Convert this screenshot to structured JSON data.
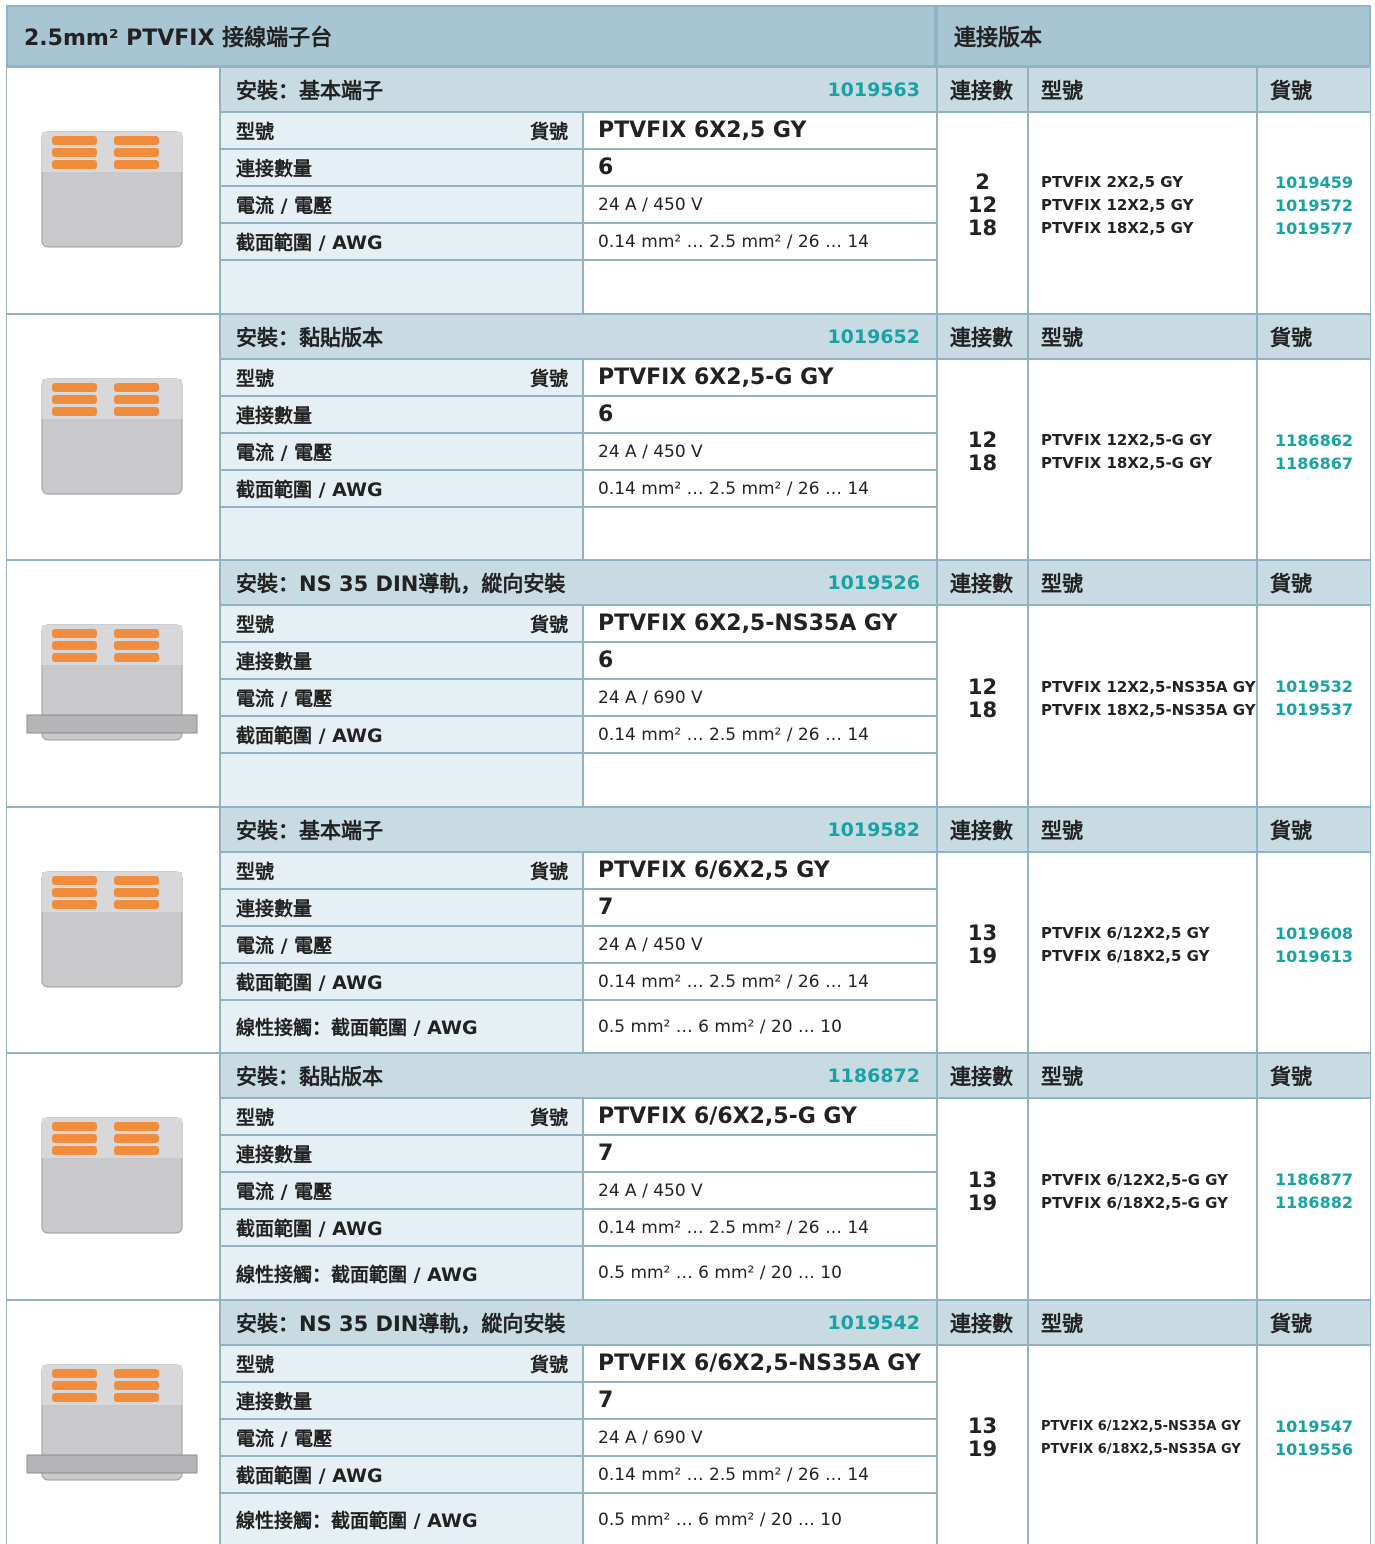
{
  "header": {
    "title": "2.5mm² PTVFIX 接線端子台",
    "versions_title": "連接版本"
  },
  "sections": [
    {
      "mounting": "安裝：基本端子",
      "order_no": "1019563",
      "col_connections": "連接數",
      "col_type": "型號",
      "col_order": "貨號",
      "rows": [
        {
          "label": "型號",
          "label2": "貨號",
          "value": "PTVFIX 6X2,5 GY"
        },
        {
          "label": "連接數量",
          "value": "6"
        },
        {
          "label": "電流 / 電壓",
          "value": "24 A / 450 V"
        },
        {
          "label": "截面範圍 / AWG",
          "value": "0.14 mm² … 2.5 mm² / 26 … 14"
        }
      ],
      "versions": {
        "connections": [
          "2",
          "12",
          "18"
        ],
        "types": [
          "PTVFIX 2X2,5 GY",
          "PTVFIX 12X2,5 GY",
          "PTVFIX 18X2,5 GY"
        ],
        "order_numbers": [
          "1019459",
          "1019572",
          "1019577"
        ]
      }
    },
    {
      "mounting": "安裝：黏貼版本",
      "order_no": "1019652",
      "col_connections": "連接數",
      "col_type": "型號",
      "col_order": "貨號",
      "rows": [
        {
          "label": "型號",
          "label2": "貨號",
          "value": "PTVFIX 6X2,5-G GY"
        },
        {
          "label": "連接數量",
          "value": "6"
        },
        {
          "label": "電流 / 電壓",
          "value": "24 A / 450 V"
        },
        {
          "label": "截面範圍 / AWG",
          "value": "0.14 mm² … 2.5 mm² / 26 … 14"
        }
      ],
      "versions": {
        "connections": [
          "12",
          "18"
        ],
        "types": [
          "PTVFIX 12X2,5-G GY",
          "PTVFIX 18X2,5-G GY"
        ],
        "order_numbers": [
          "1186862",
          "1186867"
        ]
      }
    },
    {
      "mounting": "安裝：NS 35 DIN導軌，縱向安裝",
      "order_no": "1019526",
      "col_connections": "連接數",
      "col_type": "型號",
      "col_order": "貨號",
      "rows": [
        {
          "label": "型號",
          "label2": "貨號",
          "value": "PTVFIX 6X2,5-NS35A GY"
        },
        {
          "label": "連接數量",
          "value": "6"
        },
        {
          "label": "電流 / 電壓",
          "value": "24 A / 690 V"
        },
        {
          "label": "截面範圍 / AWG",
          "value": "0.14 mm² … 2.5 mm² / 26 … 14"
        }
      ],
      "versions": {
        "connections": [
          "12",
          "18"
        ],
        "types": [
          "PTVFIX 12X2,5-NS35A GY",
          "PTVFIX 18X2,5-NS35A GY"
        ],
        "order_numbers": [
          "1019532",
          "1019537"
        ]
      }
    },
    {
      "mounting": "安裝：基本端子",
      "order_no": "1019582",
      "col_connections": "連接數",
      "col_type": "型號",
      "col_order": "貨號",
      "rows": [
        {
          "label": "型號",
          "label2": "貨號",
          "value": "PTVFIX 6/6X2,5 GY"
        },
        {
          "label": "連接數量",
          "value": "7"
        },
        {
          "label": "電流 / 電壓",
          "value": "24 A / 450 V"
        },
        {
          "label": "截面範圍 / AWG",
          "value": "0.14 mm² … 2.5 mm² / 26 … 14"
        },
        {
          "label": "線性接觸：截面範圍 / AWG",
          "value": "0.5 mm² … 6 mm² / 20 … 10"
        }
      ],
      "versions": {
        "connections": [
          "13",
          "19"
        ],
        "types": [
          "PTVFIX 6/12X2,5 GY",
          "PTVFIX 6/18X2,5 GY"
        ],
        "order_numbers": [
          "1019608",
          "1019613"
        ]
      }
    },
    {
      "mounting": "安裝：黏貼版本",
      "order_no": "1186872",
      "col_connections": "連接數",
      "col_type": "型號",
      "col_order": "貨號",
      "rows": [
        {
          "label": "型號",
          "label2": "貨號",
          "value": "PTVFIX 6/6X2,5-G GY"
        },
        {
          "label": "連接數量",
          "value": "7"
        },
        {
          "label": "電流 / 電壓",
          "value": "24 A / 450 V"
        },
        {
          "label": "截面範圍 / AWG",
          "value": "0.14 mm² … 2.5 mm² / 26 … 14"
        },
        {
          "label": "線性接觸：截面範圍 / AWG",
          "value": "0.5 mm² … 6 mm² / 20 … 10"
        }
      ],
      "versions": {
        "connections": [
          "13",
          "19"
        ],
        "types": [
          "PTVFIX 6/12X2,5-G GY",
          "PTVFIX 6/18X2,5-G GY"
        ],
        "order_numbers": [
          "1186877",
          "1186882"
        ]
      }
    },
    {
      "mounting": "安裝：NS 35 DIN導軌，縱向安裝",
      "order_no": "1019542",
      "col_connections": "連接數",
      "col_type": "型號",
      "col_order": "貨號",
      "rows": [
        {
          "label": "型號",
          "label2": "貨號",
          "value": "PTVFIX 6/6X2,5-NS35A GY"
        },
        {
          "label": "連接數量",
          "value": "7"
        },
        {
          "label": "電流 / 電壓",
          "value": "24 A / 690 V"
        },
        {
          "label": "截面範圍 / AWG",
          "value": "0.14 mm² … 2.5 mm² / 26 … 14"
        },
        {
          "label": "線性接觸：截面範圍 / AWG",
          "value": "0.5 mm² … 6 mm² / 20 … 10"
        }
      ],
      "versions": {
        "connections": [
          "13",
          "19"
        ],
        "types": [
          "PTVFIX 6/12X2,5-NS35A GY",
          "PTVFIX 6/18X2,5-NS35A GY"
        ],
        "order_numbers": [
          "1019547",
          "1019556"
        ]
      }
    }
  ]
}
